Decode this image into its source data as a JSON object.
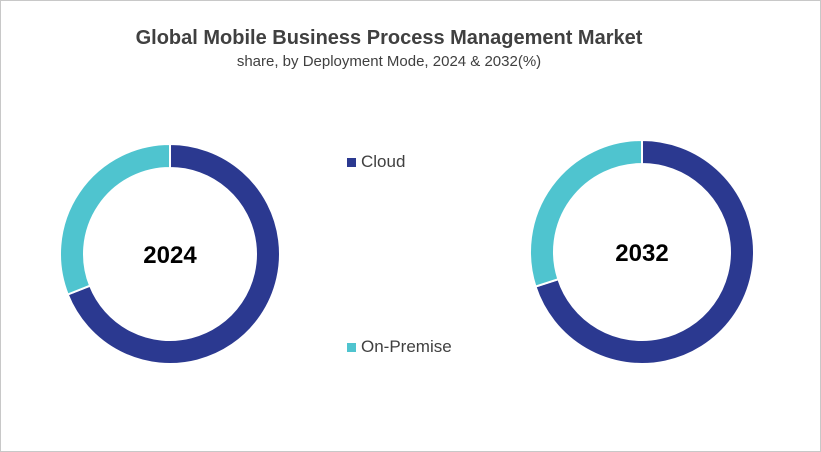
{
  "chart_data": {
    "type": "pie",
    "title": "Global Mobile Business Process Management Market",
    "subtitle": "share, by Deployment Mode, 2024 & 2032(%)",
    "legend": {
      "placement": "center",
      "entries": [
        "Cloud",
        "On-Premise"
      ]
    },
    "colors": {
      "Cloud": "#2b3990",
      "On-Premise": "#4fc4cf"
    },
    "charts": [
      {
        "label": "2024",
        "categories": [
          "Cloud",
          "On-Premise"
        ],
        "values": [
          69,
          31
        ]
      },
      {
        "label": "2032",
        "categories": [
          "Cloud",
          "On-Premise"
        ],
        "values": [
          70,
          30
        ]
      }
    ]
  }
}
